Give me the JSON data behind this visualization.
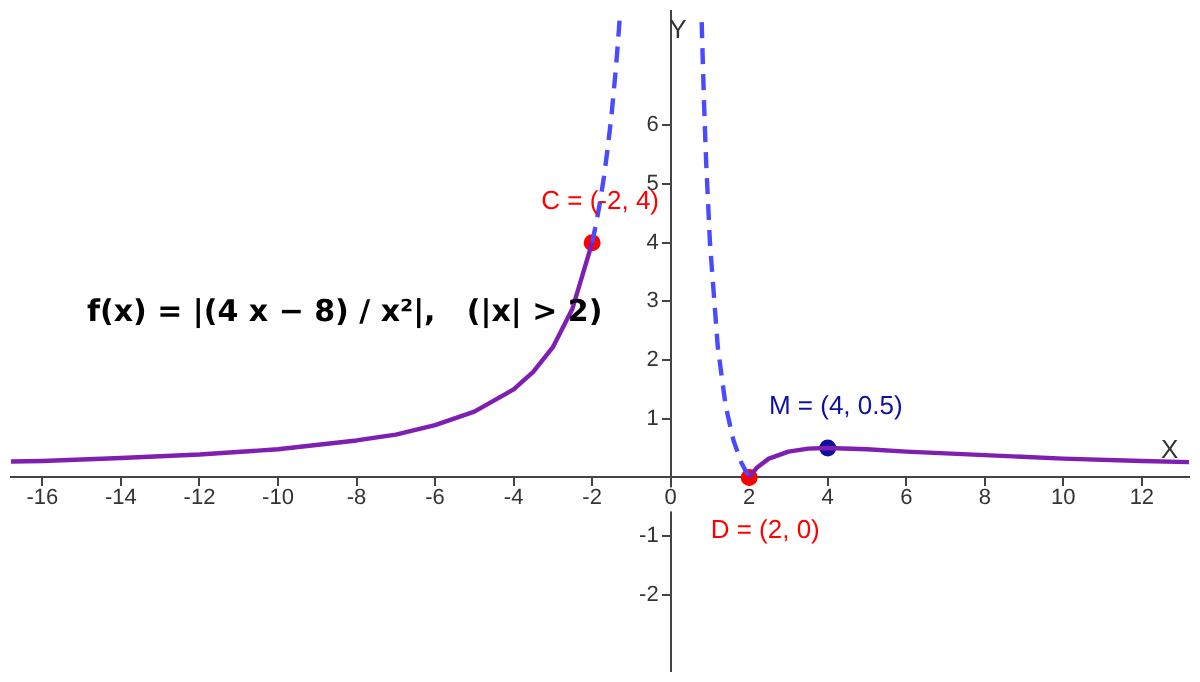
{
  "chart_data": {
    "type": "line",
    "xlabel": "X",
    "ylabel": "Y",
    "xlim": [
      -16.8,
      13.2
    ],
    "ylim": [
      -3.3,
      7.95
    ],
    "xticks": [
      -16,
      -14,
      -12,
      -10,
      -8,
      -6,
      -4,
      -2,
      0,
      2,
      4,
      6,
      8,
      10,
      12
    ],
    "yticks": [
      -2,
      -1,
      1,
      2,
      3,
      4,
      5,
      6
    ],
    "grid": false,
    "legend": false,
    "series": [
      {
        "line_style": "solid",
        "marker": "none",
        "color": "#7f1fb2",
        "x": [
          -16.8,
          -16,
          -14,
          -12,
          -10,
          -8,
          -7,
          -6,
          -5,
          -4,
          -3.5,
          -3,
          -2.5,
          -2
        ],
        "values": [
          0.27,
          0.28,
          0.33,
          0.39,
          0.48,
          0.63,
          0.73,
          0.89,
          1.12,
          1.5,
          1.8,
          2.22,
          2.88,
          4
        ]
      },
      {
        "line_style": "dashed",
        "marker": "none",
        "color": "#4a4aff",
        "x": [
          -2,
          -1.9,
          -1.8,
          -1.7,
          -1.6,
          -1.5,
          -1.4,
          -1.35,
          -1.3
        ],
        "values": [
          4,
          4.32,
          4.69,
          5.12,
          5.63,
          6.22,
          6.94,
          7.35,
          7.81
        ]
      },
      {
        "line_style": "dashed",
        "marker": "none",
        "color": "#4a4aff",
        "x": [
          0.79,
          0.8,
          0.85,
          0.9,
          1,
          1.2,
          1.4,
          1.6,
          1.8,
          2
        ],
        "values": [
          7.76,
          7.5,
          6.37,
          5.43,
          4,
          2.22,
          1.22,
          0.63,
          0.25,
          0
        ]
      },
      {
        "line_style": "solid",
        "marker": "none",
        "color": "#7f1fb2",
        "x": [
          2,
          2.2,
          2.5,
          3,
          3.5,
          4,
          5,
          6,
          8,
          10,
          12,
          13.2
        ],
        "values": [
          0,
          0.17,
          0.32,
          0.44,
          0.49,
          0.5,
          0.48,
          0.44,
          0.38,
          0.32,
          0.28,
          0.26
        ]
      },
      {
        "type": "scatter",
        "marker": "circle",
        "color": "#ff0000",
        "x": [
          -2,
          2
        ],
        "values": [
          4,
          0
        ]
      },
      {
        "type": "scatter",
        "marker": "circle",
        "color": "#1010a0",
        "x": [
          4
        ],
        "values": [
          0.5
        ]
      }
    ],
    "annotations": [
      {
        "text": "C = (-2, 4)",
        "x": -2,
        "y": 4
      },
      {
        "text": "D = (2, 0)",
        "x": 2,
        "y": 0
      },
      {
        "text": "M = (4, 0.5)",
        "x": 4,
        "y": 0.5
      },
      "f(x) = |(4 x − 8) / x²|,   (|x| > 2)"
    ]
  }
}
